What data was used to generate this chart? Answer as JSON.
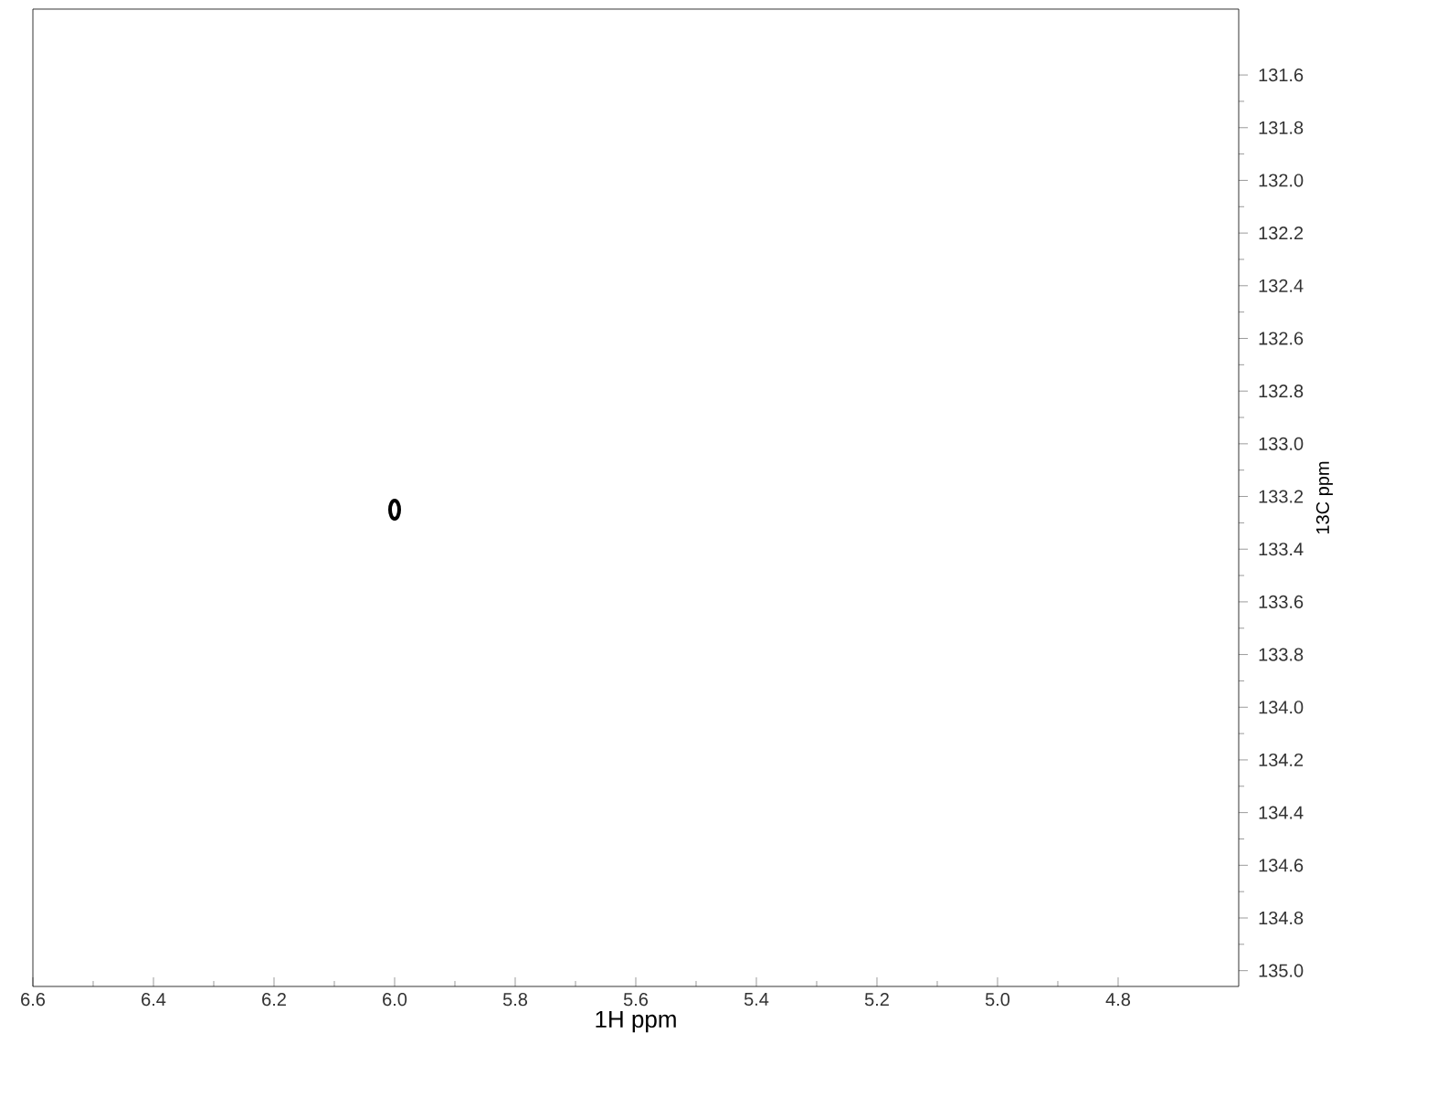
{
  "chart_data": {
    "type": "scatter",
    "xlabel": "1H ppm",
    "ylabel": "13C ppm",
    "x": [
      6.0
    ],
    "values": [
      133.25
    ],
    "color": "#000000",
    "marker": "circle",
    "xlim": [
      6.6,
      4.6
    ],
    "ylim": [
      135.06,
      131.35
    ],
    "xticks": [
      6.6,
      6.4,
      6.2,
      {
        "value": 6.0,
        "label": "6.0"
      },
      5.8,
      5.6,
      5.4,
      5.2,
      {
        "value": 5.0,
        "label": "5.0"
      },
      4.8
    ],
    "yticks": [
      131.6,
      131.8,
      {
        "value": 132.0,
        "label": "132.0"
      },
      132.2,
      132.4,
      132.6,
      132.8,
      {
        "value": 133.0,
        "label": "133.0"
      },
      133.2,
      133.4,
      133.6,
      133.8,
      {
        "value": 134.0,
        "label": "134.0"
      },
      134.2,
      134.4,
      134.6,
      134.8,
      {
        "value": 135.0,
        "label": "135.0"
      }
    ],
    "grid": false
  }
}
